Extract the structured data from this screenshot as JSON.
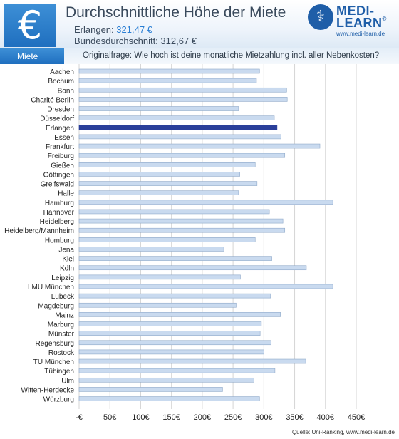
{
  "header": {
    "icon": "euro-icon",
    "title": "Durchschnittliche Höhe der Miete",
    "city_label": "Erlangen:",
    "city_value": "321,47 €",
    "national_label": "Bundesdurchschnitt:",
    "national_value": "312,67 €"
  },
  "logo": {
    "icon": "caduceus-icon",
    "line1": "MEDI-",
    "line2": "LEARN",
    "registered": "®",
    "url": "www.medi-learn.de"
  },
  "tag": "Miete",
  "question": "Originalfrage: Wie hoch ist deine monatliche Mietzahlung incl. aller Nebenkosten?",
  "footer": "Quelle: Uni-Ranking, www.medi-learn.de",
  "colors": {
    "bar": "#c9daef",
    "bar_edge": "#8fa9c9",
    "highlight": "#2a3f9a",
    "grid": "#d5d5d5",
    "accent": "#2a7fd4"
  },
  "chart_data": {
    "type": "bar",
    "orientation": "horizontal",
    "title": "",
    "xlabel": "",
    "ylabel": "",
    "xlim": [
      0,
      450
    ],
    "xticks": [
      0,
      50,
      100,
      150,
      200,
      250,
      300,
      350,
      400,
      450
    ],
    "xtick_labels": [
      "-€",
      "50€",
      "100€",
      "150€",
      "200€",
      "250€",
      "300€",
      "350€",
      "400€",
      "450€"
    ],
    "grid": true,
    "highlight": "Erlangen",
    "categories": [
      "Aachen",
      "Bochum",
      "Bonn",
      "Charité Berlin",
      "Dresden",
      "Düsseldorf",
      "Erlangen",
      "Essen",
      "Frankfurt",
      "Freiburg",
      "Gießen",
      "Göttingen",
      "Greifswald",
      "Halle",
      "Hamburg",
      "Hannover",
      "Heidelberg",
      "Heidelberg/Mannheim",
      "Homburg",
      "Jena",
      "Kiel",
      "Köln",
      "Leipzig",
      "LMU München",
      "Lübeck",
      "Magdeburg",
      "Mainz",
      "Marburg",
      "Münster",
      "Regensburg",
      "Rostock",
      "TU München",
      "Tübingen",
      "Ulm",
      "Witten-Herdecke",
      "Würzburg"
    ],
    "values": [
      293,
      288,
      337,
      338,
      259,
      317,
      321.47,
      328,
      391,
      334,
      286,
      261,
      289,
      259,
      412,
      309,
      331,
      334,
      286,
      235,
      313,
      369,
      262,
      412,
      311,
      255,
      327,
      296,
      294,
      312,
      300,
      368,
      318,
      284,
      233,
      293
    ]
  }
}
